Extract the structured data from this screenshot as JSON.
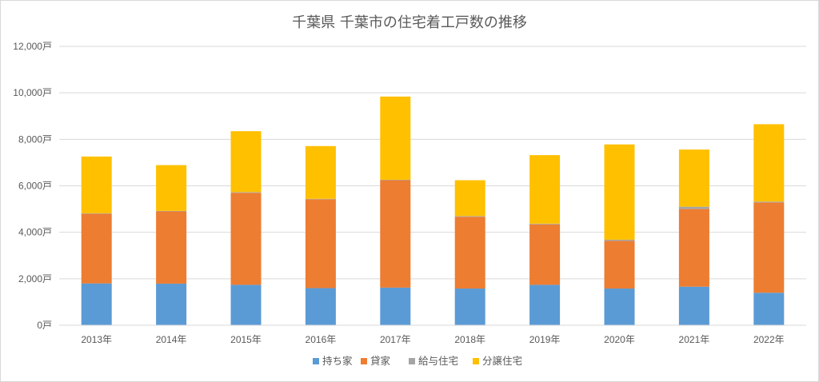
{
  "chart_data": {
    "type": "bar",
    "stacked": true,
    "title": "千葉県 千葉市の住宅着工戸数の推移",
    "categories": [
      "2013年",
      "2014年",
      "2015年",
      "2016年",
      "2017年",
      "2018年",
      "2019年",
      "2020年",
      "2021年",
      "2022年"
    ],
    "series": [
      {
        "name": "持ち家",
        "color": "#5b9bd5",
        "values": [
          1800,
          1790,
          1740,
          1600,
          1620,
          1580,
          1740,
          1580,
          1660,
          1400
        ]
      },
      {
        "name": "貸家",
        "color": "#ed7d31",
        "values": [
          3000,
          3110,
          3960,
          3820,
          4620,
          3090,
          2600,
          2050,
          3340,
          3880
        ]
      },
      {
        "name": "給与住宅",
        "color": "#a5a5a5",
        "values": [
          20,
          20,
          30,
          20,
          20,
          30,
          30,
          50,
          100,
          40
        ]
      },
      {
        "name": "分譲住宅",
        "color": "#ffc000",
        "values": [
          2440,
          1970,
          2620,
          2270,
          3580,
          1540,
          2950,
          4100,
          2460,
          3330
        ]
      }
    ],
    "yticks": [
      "0戸",
      "2,000戸",
      "4,000戸",
      "6,000戸",
      "8,000戸",
      "10,000戸",
      "12,000戸"
    ],
    "ylim": [
      0,
      12000
    ],
    "xlabel": "",
    "ylabel": "",
    "grid": true,
    "legend_position": "bottom"
  }
}
